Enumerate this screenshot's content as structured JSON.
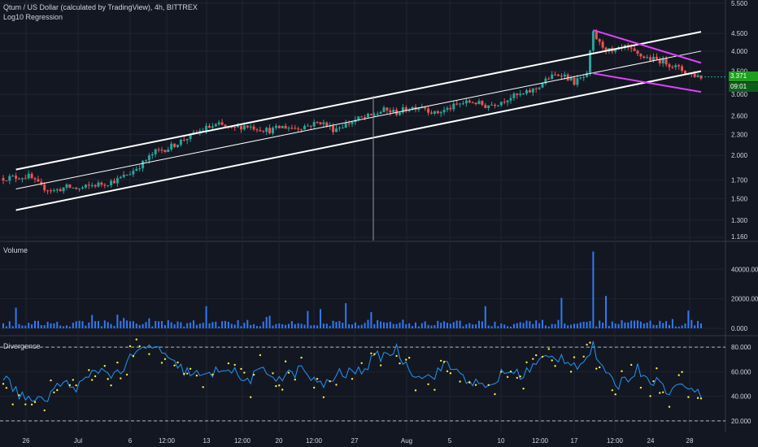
{
  "header": {
    "title": "Qtum / US Dollar (calculated by TradingView), 4h, BITTREX",
    "indicator": "Log10 Regression"
  },
  "panes": {
    "volume_label": "Volume",
    "divergence_label": "Divergence"
  },
  "last_price": {
    "value": "3.371",
    "countdown": "09:01",
    "bg": "#1e9e1e"
  },
  "colors": {
    "background": "#131722",
    "grid": "#1f2433",
    "up_candle": "#26a69a",
    "down_candle": "#ef5350",
    "channel": "#ffffff",
    "wedge": "#e040fb",
    "volume": "#3179f5",
    "osc_line": "#2196f3",
    "osc_dots": "#ffeb3b"
  },
  "chart_data": [
    {
      "type": "candlestick",
      "name": "price",
      "x_ticks": [
        "26",
        "Jul",
        "6",
        "12:00",
        "13",
        "12:00",
        "20",
        "12:00",
        "27",
        "Aug",
        "5",
        "10",
        "12:00",
        "17",
        "12:00",
        "24",
        "28"
      ],
      "y_ticks": [
        "5.500",
        "4.500",
        "4.000",
        "3.500",
        "3.000",
        "2.600",
        "2.300",
        "2.000",
        "1.700",
        "1.500",
        "1.300",
        "1.160"
      ],
      "scale": "log",
      "ylim": [
        1.16,
        5.5
      ],
      "close_path": [
        [
          0,
          1.72
        ],
        [
          4,
          1.74
        ],
        [
          6,
          1.62
        ],
        [
          8,
          1.58
        ],
        [
          10,
          1.62
        ],
        [
          12,
          1.6
        ],
        [
          14,
          1.64
        ],
        [
          16,
          1.66
        ],
        [
          18,
          1.7
        ],
        [
          20,
          1.78
        ],
        [
          22,
          1.9
        ],
        [
          24,
          2.05
        ],
        [
          26,
          2.1
        ],
        [
          28,
          2.2
        ],
        [
          30,
          2.3
        ],
        [
          32,
          2.4
        ],
        [
          34,
          2.45
        ],
        [
          36,
          2.38
        ],
        [
          38,
          2.44
        ],
        [
          40,
          2.4
        ],
        [
          42,
          2.36
        ],
        [
          44,
          2.42
        ],
        [
          46,
          2.4
        ],
        [
          48,
          2.44
        ],
        [
          50,
          2.5
        ],
        [
          52,
          2.38
        ],
        [
          54,
          2.46
        ],
        [
          56,
          2.55
        ],
        [
          58,
          2.6
        ],
        [
          60,
          2.7
        ],
        [
          62,
          2.66
        ],
        [
          64,
          2.74
        ],
        [
          66,
          2.78
        ],
        [
          68,
          2.64
        ],
        [
          70,
          2.72
        ],
        [
          72,
          2.82
        ],
        [
          74,
          2.86
        ],
        [
          76,
          2.78
        ],
        [
          78,
          2.84
        ],
        [
          80,
          2.95
        ],
        [
          82,
          3.0
        ],
        [
          84,
          3.12
        ],
        [
          86,
          3.35
        ],
        [
          88,
          3.45
        ],
        [
          90,
          3.25
        ],
        [
          92,
          3.4
        ],
        [
          93,
          4.5
        ],
        [
          94,
          4.2
        ],
        [
          96,
          3.95
        ],
        [
          98,
          4.1
        ],
        [
          100,
          3.9
        ],
        [
          102,
          3.8
        ],
        [
          104,
          3.75
        ],
        [
          106,
          3.6
        ],
        [
          108,
          3.45
        ],
        [
          110,
          3.371
        ]
      ],
      "regression_channel": {
        "upper": [
          [
            2,
            1.82
          ],
          [
            110,
            4.55
          ]
        ],
        "mid": [
          [
            2,
            1.6
          ],
          [
            110,
            4.0
          ]
        ],
        "lower": [
          [
            2,
            1.39
          ],
          [
            110,
            3.5
          ]
        ]
      },
      "wedge": {
        "upper": [
          [
            93,
            4.6
          ],
          [
            110,
            3.7
          ]
        ],
        "lower": [
          [
            93,
            3.45
          ],
          [
            110,
            3.05
          ]
        ]
      }
    },
    {
      "type": "bar",
      "name": "volume",
      "y_ticks": [
        "40000.000",
        "20000.000",
        "0.000"
      ],
      "ylim": [
        0,
        55000
      ],
      "peaks": [
        [
          2,
          14000
        ],
        [
          14,
          9000
        ],
        [
          32,
          15000
        ],
        [
          50,
          13000
        ],
        [
          54,
          17000
        ],
        [
          58,
          11000
        ],
        [
          76,
          15000
        ],
        [
          88,
          19000
        ],
        [
          93,
          52000
        ],
        [
          95,
          22000
        ],
        [
          108,
          12000
        ]
      ]
    },
    {
      "type": "line",
      "name": "divergence",
      "y_ticks": [
        "80.000",
        "60.000",
        "40.000",
        "20.000"
      ],
      "ylim": [
        12,
        88
      ],
      "bands": [
        80,
        20
      ],
      "series_path": [
        [
          0,
          55
        ],
        [
          3,
          40
        ],
        [
          6,
          35
        ],
        [
          9,
          50
        ],
        [
          12,
          48
        ],
        [
          15,
          62
        ],
        [
          18,
          58
        ],
        [
          21,
          75
        ],
        [
          24,
          82
        ],
        [
          26,
          68
        ],
        [
          29,
          60
        ],
        [
          32,
          55
        ],
        [
          35,
          65
        ],
        [
          38,
          52
        ],
        [
          41,
          60
        ],
        [
          44,
          55
        ],
        [
          47,
          62
        ],
        [
          50,
          48
        ],
        [
          53,
          58
        ],
        [
          56,
          60
        ],
        [
          59,
          72
        ],
        [
          62,
          78
        ],
        [
          64,
          62
        ],
        [
          67,
          55
        ],
        [
          70,
          66
        ],
        [
          73,
          55
        ],
        [
          76,
          45
        ],
        [
          79,
          60
        ],
        [
          82,
          58
        ],
        [
          85,
          70
        ],
        [
          88,
          72
        ],
        [
          91,
          65
        ],
        [
          93,
          80
        ],
        [
          95,
          55
        ],
        [
          97,
          50
        ],
        [
          100,
          62
        ],
        [
          102,
          55
        ],
        [
          105,
          45
        ],
        [
          108,
          50
        ],
        [
          110,
          38
        ]
      ]
    }
  ]
}
